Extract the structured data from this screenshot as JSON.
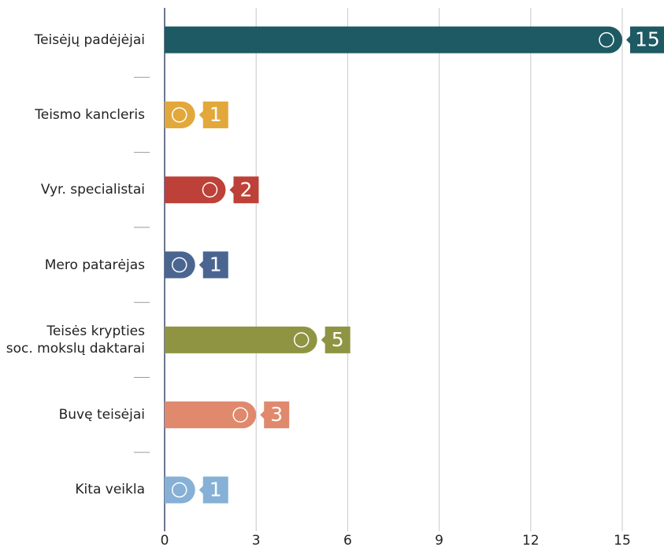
{
  "chart_data": {
    "type": "bar",
    "orientation": "horizontal",
    "categories": [
      "Teisėjų padėjėjai",
      "Teismo kancleris",
      "Vyr. specialistai",
      "Mero patarėjas",
      "Teisės krypties\nsoc. mokslų daktarai",
      "Buvę teisėjai",
      "Kita veikla"
    ],
    "values": [
      15,
      1,
      2,
      1,
      5,
      3,
      1
    ],
    "colors": [
      "#1d5a63",
      "#e3a83b",
      "#bd4138",
      "#4a6590",
      "#8f9443",
      "#e0896c",
      "#86b0d6"
    ],
    "xlim": [
      0,
      15
    ],
    "xticks": [
      0,
      3,
      6,
      9,
      12,
      15
    ],
    "grid": true
  }
}
